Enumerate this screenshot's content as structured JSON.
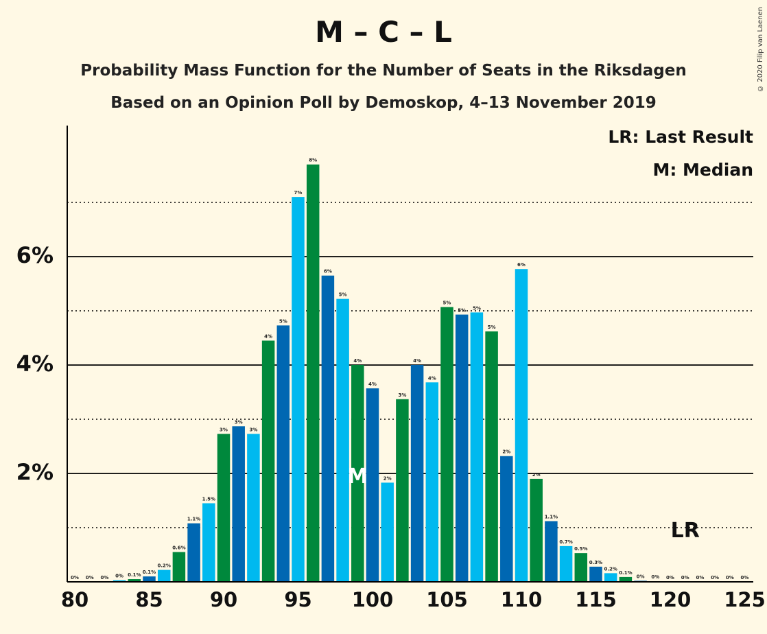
{
  "title": "M – C – L",
  "subtitle1": "Probability Mass Function for the Number of Seats in the Riksdagen",
  "subtitle2": "Based on an Opinion Poll by Demoskop, 4–13 November 2019",
  "copyright": "© 2020 Filip van Laenen",
  "legend": {
    "last_result": "LR: Last Result",
    "median": "M: Median"
  },
  "colors": {
    "light_blue": "#00b9ef",
    "green": "#00883c",
    "dark_blue": "#0067b2",
    "background": "#fff9e5"
  },
  "chart_data": {
    "type": "bar",
    "xlabel": "",
    "ylabel": "",
    "x": [
      80,
      81,
      82,
      83,
      84,
      85,
      86,
      87,
      88,
      89,
      90,
      91,
      92,
      93,
      94,
      95,
      96,
      97,
      98,
      99,
      100,
      101,
      102,
      103,
      104,
      105,
      106,
      107,
      108,
      109,
      110,
      111,
      112,
      113,
      114,
      115,
      116,
      117,
      118,
      119,
      120,
      121,
      122,
      123,
      124,
      125
    ],
    "values": [
      0,
      0,
      0,
      0.03,
      0.05,
      0.1,
      0.22,
      0.55,
      1.08,
      1.45,
      2.73,
      2.87,
      2.73,
      4.45,
      4.73,
      7.1,
      7.7,
      5.65,
      5.22,
      4.0,
      3.57,
      1.83,
      3.37,
      4.0,
      3.68,
      5.07,
      4.93,
      4.97,
      4.62,
      2.32,
      5.77,
      1.9,
      1.12,
      0.66,
      0.53,
      0.28,
      0.16,
      0.09,
      0.02,
      0.01,
      0,
      0,
      0,
      0,
      0,
      0
    ],
    "labels": [
      "0%",
      "0%",
      "0%",
      "0%",
      "0.1%",
      "0.1%",
      "0.2%",
      "0.6%",
      "1.1%",
      "1.5%",
      "3%",
      "3%",
      "3%",
      "4%",
      "5%",
      "7%",
      "8%",
      "6%",
      "5%",
      "4%",
      "4%",
      "2%",
      "3%",
      "4%",
      "4%",
      "5%",
      "5%",
      "5%",
      "5%",
      "2%",
      "6%",
      "2%",
      "1.1%",
      "0.7%",
      "0.5%",
      "0.3%",
      "0.2%",
      "0.1%",
      "0%",
      "0%",
      "0%",
      "0%",
      "0%",
      "0%",
      "0%",
      "0%"
    ],
    "x_ticks": [
      80,
      85,
      90,
      95,
      100,
      105,
      110,
      115,
      120,
      125
    ],
    "x_tick_labels": [
      "80",
      "85",
      "90",
      "95",
      "100",
      "105",
      "110",
      "115",
      "120",
      "125"
    ],
    "y_ticks": [
      2,
      4,
      6
    ],
    "y_tick_labels": [
      "2%",
      "4%",
      "6%"
    ],
    "y_minor_gridlines": [
      1,
      3,
      5,
      7
    ],
    "xlim": [
      80,
      125
    ],
    "ylim": [
      0,
      8.4
    ],
    "median": 99,
    "median_label": "M",
    "last_result": 121,
    "last_result_label": "LR"
  }
}
